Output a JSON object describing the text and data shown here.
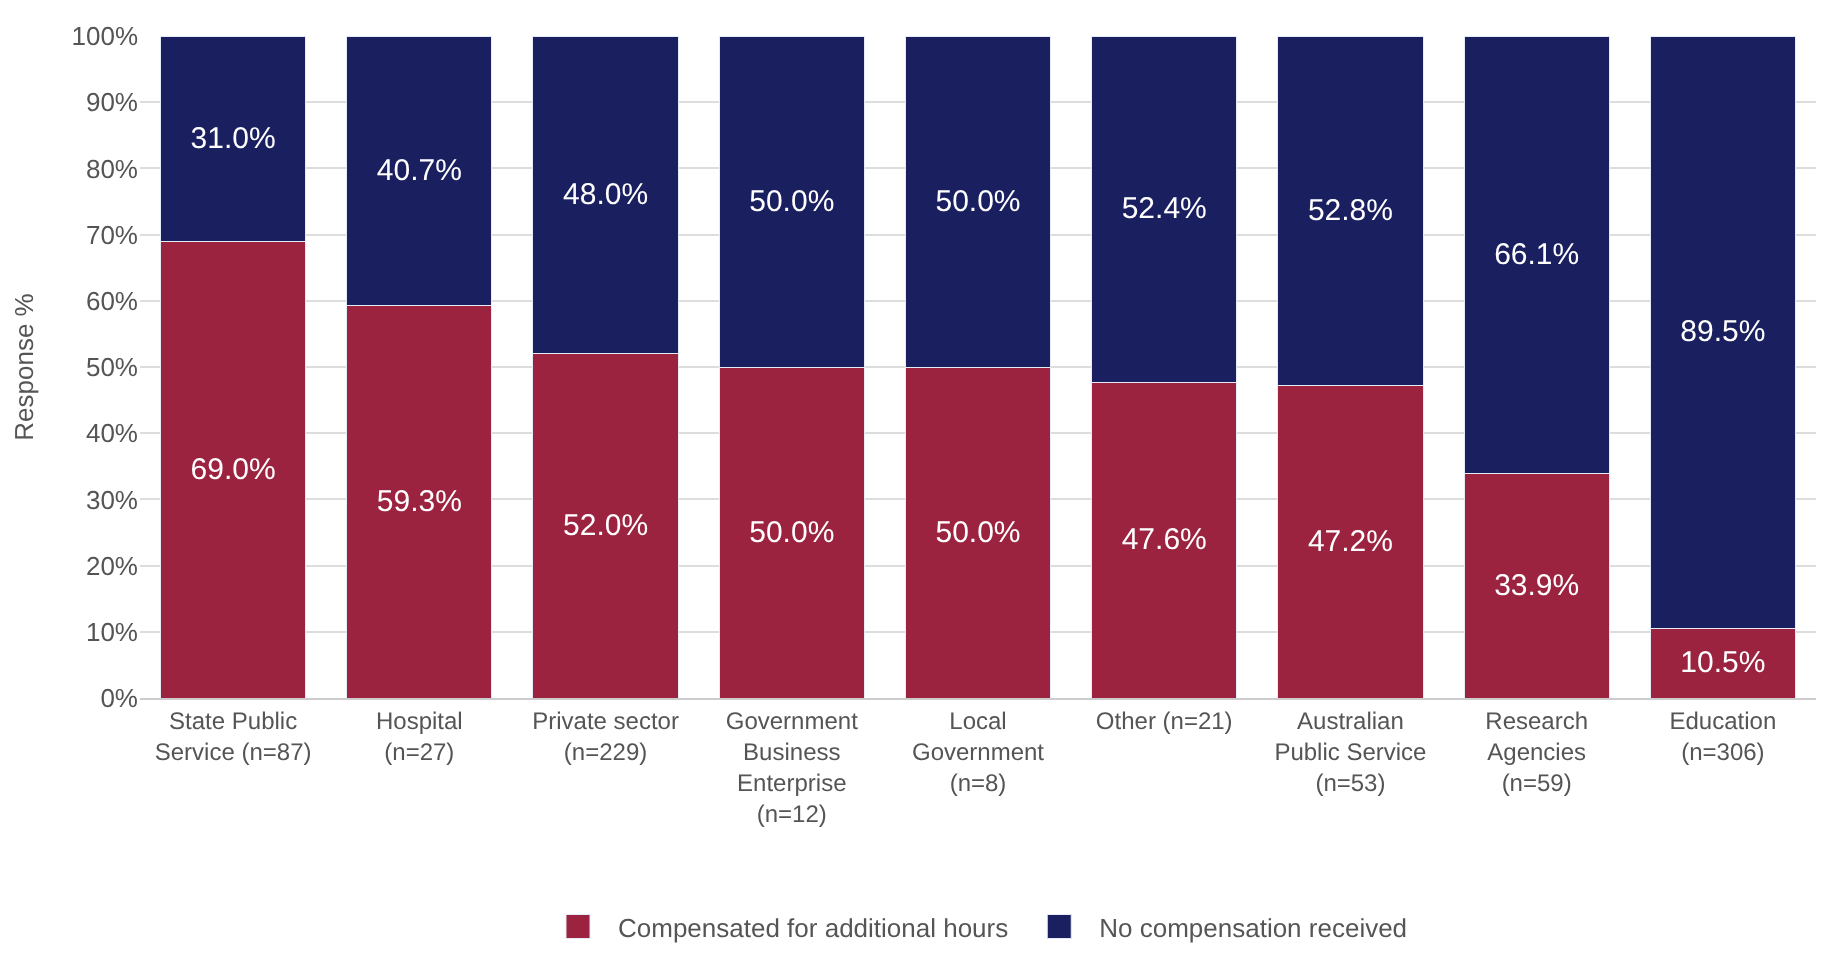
{
  "chart_data": {
    "type": "bar",
    "stacked": true,
    "ylabel": "Response %",
    "categories": [
      "State Public Service (n=87)",
      "Hospital (n=27)",
      "Private sector (n=229)",
      "Government Business Enterprise (n=12)",
      "Local Government (n=8)",
      "Other (n=21)",
      "Australian Public Service (n=53)",
      "Research Agencies (n=59)",
      "Education (n=306)"
    ],
    "series": [
      {
        "name": "Compensated for additional hours",
        "color": "#9b2340",
        "values": [
          69.0,
          59.3,
          52.0,
          50.0,
          50.0,
          47.6,
          47.2,
          33.9,
          10.5
        ],
        "value_labels": [
          "69.0%",
          "59.3%",
          "52.0%",
          "50.0%",
          "50.0%",
          "47.6%",
          "47.2%",
          "33.9%",
          "10.5%"
        ]
      },
      {
        "name": "No compensation received",
        "color": "#1a1f5f",
        "values": [
          31.0,
          40.7,
          48.0,
          50.0,
          50.0,
          52.4,
          52.8,
          66.1,
          89.5
        ],
        "value_labels": [
          "31.0%",
          "40.7%",
          "48.0%",
          "50.0%",
          "50.0%",
          "52.4%",
          "52.8%",
          "66.1%",
          "89.5%"
        ]
      }
    ],
    "ylim": [
      0,
      100
    ],
    "yticks": [
      {
        "value": 0,
        "label": "0%"
      },
      {
        "value": 10,
        "label": "10%"
      },
      {
        "value": 20,
        "label": "20%"
      },
      {
        "value": 30,
        "label": "30%"
      },
      {
        "value": 40,
        "label": "40%"
      },
      {
        "value": 50,
        "label": "50%"
      },
      {
        "value": 60,
        "label": "60%"
      },
      {
        "value": 70,
        "label": "70%"
      },
      {
        "value": 80,
        "label": "80%"
      },
      {
        "value": 90,
        "label": "90%"
      },
      {
        "value": 100,
        "label": "100%"
      }
    ],
    "grid": "y",
    "legend": "bottom"
  }
}
